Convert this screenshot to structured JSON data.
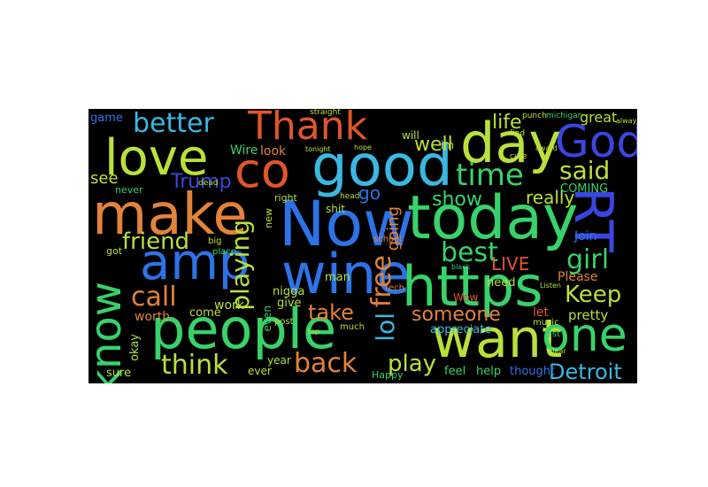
{
  "palette": {
    "background": "#000000",
    "page": "#ffffff",
    "orange": "#e2833a",
    "red_orange": "#e0552a",
    "green": "#37d36a",
    "lime": "#b9e13a",
    "cyan": "#3ab8e2",
    "blue": "#2c73e8",
    "deep_blue": "#3b46e0",
    "teal": "#2fb8a6"
  },
  "words": {
    "thank": "Thank",
    "god": "God",
    "day": "day",
    "love": "love",
    "better": "better",
    "co": "co",
    "good": "good",
    "make": "make",
    "now": "Now",
    "today": "today",
    "rt": "RT",
    "amp": "amp",
    "wine": "wine",
    "https": "https",
    "know": "know",
    "people": "people",
    "want": "want",
    "one": "one",
    "time": "time",
    "said": "said",
    "trump": "Trump",
    "friend": "friend",
    "playing": "playing",
    "free": "free",
    "best": "best",
    "girl": "girl",
    "call": "call",
    "keep": "Keep",
    "lol": "lol",
    "think": "think",
    "back": "back",
    "detroit": "Detroit",
    "take": "take",
    "someone": "someone",
    "play": "play",
    "well": "well",
    "life": "life",
    "see": "see",
    "go": "go",
    "show": "show",
    "really": "really",
    "going": "going",
    "live": "LIVE",
    "great": "great",
    "coming": "COMING",
    "join": "Join",
    "please": "Please",
    "pretty": "pretty",
    "let": "let",
    "appreciate": "appreciate",
    "feel": "feel",
    "help": "help",
    "thought": "thought",
    "wow": "Wow",
    "need": "need",
    "worth": "worth",
    "come": "come",
    "work": "work",
    "okay": "okay",
    "sure": "sure",
    "year": "year",
    "ever": "ever",
    "even": "even",
    "give": "give",
    "man": "man",
    "nigga": "nigga",
    "shit": "shit",
    "new": "new",
    "right": "right",
    "wire": "Wire",
    "look": "look",
    "game": "game",
    "never": "never",
    "got": "got",
    "will": "will",
    "im": "im",
    "big": "big",
    "place": "place",
    "happy": "Happy",
    "school": "school",
    "tech": "tech",
    "post": "post",
    "much": "much",
    "music": "music",
    "last": "last",
    "dead": "dead",
    "head": "head",
    "michigan": "michigan",
    "straight": "straight",
    "punch": "punch",
    "find": "find",
    "cute": "cute",
    "listen": "Listen",
    "award": "award",
    "always": "always",
    "clear": "clear",
    "black": "black",
    "hope": "hope",
    "tonight": "tonight",
    "top": "top"
  }
}
